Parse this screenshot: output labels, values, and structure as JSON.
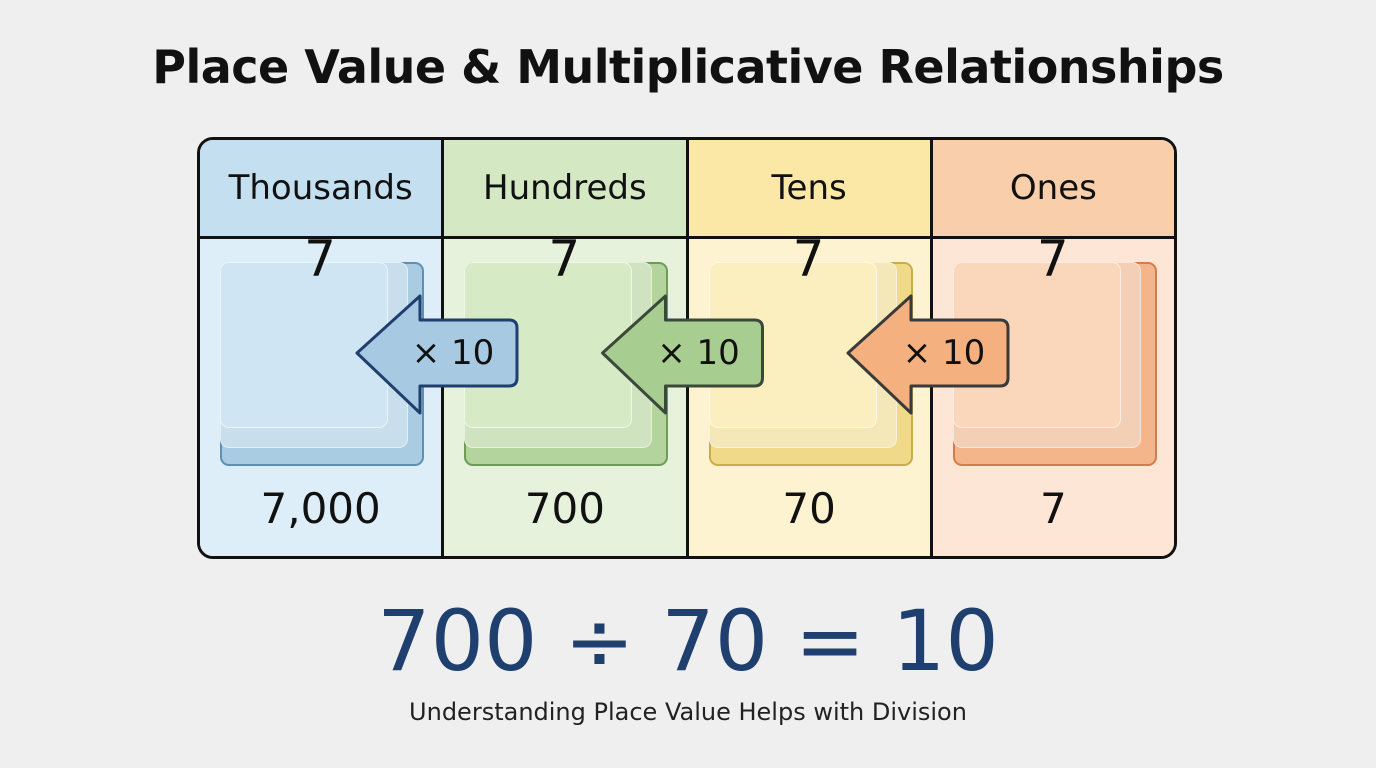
{
  "title": "Place Value & Multiplicative Relationships",
  "columns": [
    {
      "label": "Thousands",
      "digit": "7",
      "value": "7,000",
      "colors": {
        "head": "#c3dff0",
        "body": "#ddeef8",
        "card": "#a9cce3",
        "card_front": "#cfe5f3",
        "border": "#5e8fb5"
      }
    },
    {
      "label": "Hundreds",
      "digit": "7",
      "value": "700",
      "colors": {
        "head": "#d3e8c3",
        "body": "#e6f2dc",
        "card": "#b3d49c",
        "card_front": "#d6eac6",
        "border": "#6f9a58"
      }
    },
    {
      "label": "Tens",
      "digit": "7",
      "value": "70",
      "colors": {
        "head": "#fbe7a6",
        "body": "#fdf3d0",
        "card": "#f1d98a",
        "card_front": "#fcefbf",
        "border": "#c9ac4e"
      }
    },
    {
      "label": "Ones",
      "digit": "7",
      "value": "7",
      "colors": {
        "head": "#f9ceaa",
        "body": "#fde6d6",
        "card": "#f4b58a",
        "card_front": "#fad6bb",
        "border": "#d27d4c"
      }
    }
  ],
  "arrows": [
    {
      "label": "× 10",
      "fill": "#a7c9e1",
      "stroke": "#1f3f6e",
      "icon": "arrow-left"
    },
    {
      "label": "× 10",
      "fill": "#a8cd90",
      "stroke": "#3a4a3a",
      "icon": "arrow-left"
    },
    {
      "label": "× 10",
      "fill": "#f4b07f",
      "stroke": "#3a3a3a",
      "icon": "arrow-left"
    }
  ],
  "equation": "700 ÷ 70 = 10",
  "equation_color": "#1f3f6e",
  "subtitle": "Understanding Place Value Helps with Division"
}
